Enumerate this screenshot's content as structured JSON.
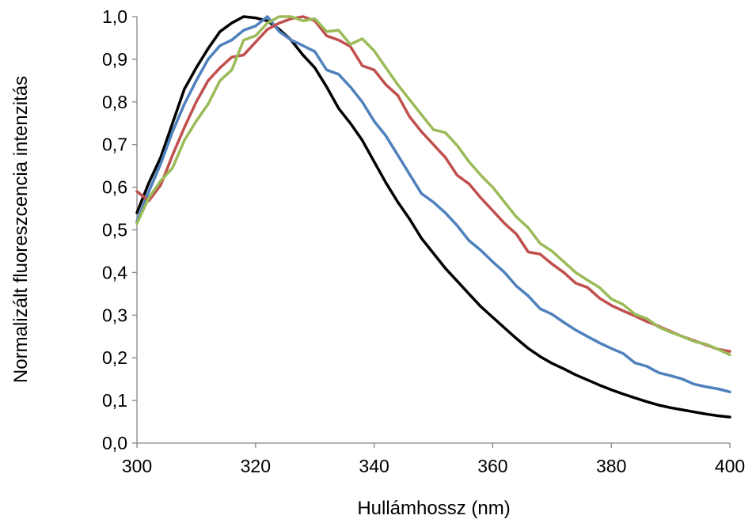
{
  "chart_data": {
    "type": "line",
    "xlabel": "Hullámhossz (nm)",
    "ylabel": "Normalizált fluoreszcencia intenzitás",
    "xlim": [
      300,
      400
    ],
    "ylim": [
      0,
      1
    ],
    "x_ticks": [
      300,
      320,
      340,
      360,
      380,
      400
    ],
    "x_tick_labels": [
      "300",
      "320",
      "340",
      "360",
      "380",
      "400"
    ],
    "y_ticks": [
      0,
      0.1,
      0.2,
      0.3,
      0.4,
      0.5,
      0.6,
      0.7,
      0.8,
      0.9,
      1.0
    ],
    "y_tick_labels": [
      "0,0",
      "0,1",
      "0,2",
      "0,3",
      "0,4",
      "0,5",
      "0,6",
      "0,7",
      "0,8",
      "0,9",
      "1,0"
    ],
    "grid": false,
    "legend": "none",
    "series": [
      {
        "color": "#000000",
        "x": [
          300,
          302,
          304,
          306,
          308,
          310,
          312,
          314,
          316,
          318,
          320,
          322,
          324,
          326,
          328,
          330,
          332,
          334,
          336,
          338,
          340,
          342,
          344,
          346,
          348,
          350,
          352,
          354,
          356,
          358,
          360,
          362,
          364,
          366,
          368,
          370,
          372,
          374,
          376,
          378,
          380,
          382,
          384,
          386,
          388,
          390,
          392,
          394,
          396,
          398,
          400
        ],
        "y": [
          0.54,
          0.61,
          0.67,
          0.75,
          0.83,
          0.88,
          0.925,
          0.965,
          0.985,
          1.0,
          0.997,
          0.99,
          0.97,
          0.945,
          0.91,
          0.88,
          0.835,
          0.785,
          0.75,
          0.71,
          0.66,
          0.61,
          0.565,
          0.525,
          0.48,
          0.445,
          0.41,
          0.38,
          0.35,
          0.32,
          0.295,
          0.27,
          0.245,
          0.222,
          0.203,
          0.187,
          0.174,
          0.16,
          0.148,
          0.136,
          0.125,
          0.115,
          0.106,
          0.097,
          0.089,
          0.083,
          0.078,
          0.073,
          0.068,
          0.064,
          0.061
        ]
      },
      {
        "color": "#4f81bd",
        "x": [
          300,
          302,
          304,
          306,
          308,
          310,
          312,
          314,
          316,
          318,
          320,
          322,
          324,
          326,
          328,
          330,
          332,
          334,
          336,
          338,
          340,
          342,
          344,
          346,
          348,
          350,
          352,
          354,
          356,
          358,
          360,
          362,
          364,
          366,
          368,
          370,
          372,
          374,
          376,
          378,
          380,
          382,
          384,
          386,
          388,
          390,
          392,
          394,
          396,
          398,
          400
        ],
        "y": [
          0.52,
          0.59,
          0.655,
          0.73,
          0.795,
          0.85,
          0.9,
          0.932,
          0.945,
          0.968,
          0.978,
          1.0,
          0.965,
          0.945,
          0.932,
          0.918,
          0.875,
          0.865,
          0.835,
          0.8,
          0.755,
          0.72,
          0.675,
          0.63,
          0.585,
          0.565,
          0.54,
          0.51,
          0.475,
          0.452,
          0.425,
          0.4,
          0.368,
          0.345,
          0.315,
          0.302,
          0.283,
          0.265,
          0.25,
          0.235,
          0.222,
          0.21,
          0.188,
          0.18,
          0.165,
          0.158,
          0.15,
          0.138,
          0.132,
          0.127,
          0.12
        ]
      },
      {
        "color": "#c0504d",
        "x": [
          300,
          302,
          304,
          306,
          308,
          310,
          312,
          314,
          316,
          318,
          320,
          322,
          324,
          326,
          328,
          330,
          332,
          334,
          336,
          338,
          340,
          342,
          344,
          346,
          348,
          350,
          352,
          354,
          356,
          358,
          360,
          362,
          364,
          366,
          368,
          370,
          372,
          374,
          376,
          378,
          380,
          382,
          384,
          386,
          388,
          390,
          392,
          394,
          396,
          398,
          400
        ],
        "y": [
          0.59,
          0.568,
          0.605,
          0.675,
          0.74,
          0.8,
          0.85,
          0.88,
          0.905,
          0.91,
          0.94,
          0.97,
          0.985,
          0.995,
          1.0,
          0.99,
          0.955,
          0.945,
          0.93,
          0.885,
          0.875,
          0.84,
          0.815,
          0.765,
          0.73,
          0.7,
          0.67,
          0.628,
          0.608,
          0.575,
          0.545,
          0.515,
          0.49,
          0.448,
          0.443,
          0.42,
          0.4,
          0.375,
          0.365,
          0.34,
          0.323,
          0.31,
          0.298,
          0.285,
          0.274,
          0.262,
          0.25,
          0.24,
          0.23,
          0.22,
          0.215
        ]
      },
      {
        "color": "#9bbb59",
        "x": [
          300,
          302,
          304,
          306,
          308,
          310,
          312,
          314,
          316,
          318,
          320,
          322,
          324,
          326,
          328,
          330,
          332,
          334,
          336,
          338,
          340,
          342,
          344,
          346,
          348,
          350,
          352,
          354,
          356,
          358,
          360,
          362,
          364,
          366,
          368,
          370,
          372,
          374,
          376,
          378,
          380,
          382,
          384,
          386,
          388,
          390,
          392,
          394,
          396,
          398,
          400
        ],
        "y": [
          0.515,
          0.575,
          0.615,
          0.645,
          0.71,
          0.755,
          0.795,
          0.85,
          0.875,
          0.945,
          0.955,
          0.985,
          1.0,
          1.0,
          0.99,
          0.995,
          0.965,
          0.968,
          0.935,
          0.948,
          0.92,
          0.88,
          0.84,
          0.805,
          0.77,
          0.735,
          0.728,
          0.698,
          0.66,
          0.628,
          0.6,
          0.565,
          0.53,
          0.505,
          0.468,
          0.45,
          0.425,
          0.4,
          0.382,
          0.365,
          0.338,
          0.325,
          0.302,
          0.292,
          0.272,
          0.26,
          0.25,
          0.238,
          0.232,
          0.22,
          0.207
        ]
      }
    ]
  }
}
